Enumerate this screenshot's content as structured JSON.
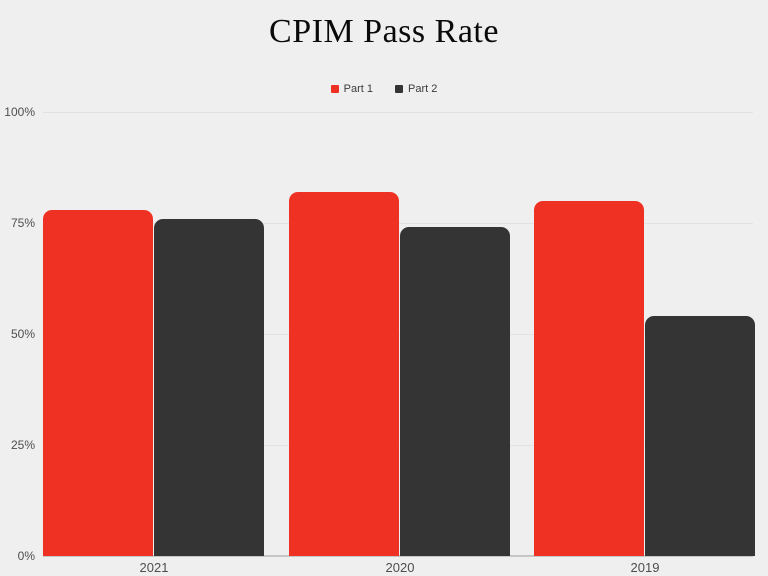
{
  "title": "CPIM Pass Rate",
  "chart_data": {
    "type": "bar",
    "title": "CPIM Pass Rate",
    "categories": [
      "2021",
      "2020",
      "2019"
    ],
    "series": [
      {
        "name": "Part 1",
        "color": "#ee3123",
        "values": [
          78,
          82,
          80
        ]
      },
      {
        "name": "Part 2",
        "color": "#343434",
        "values": [
          76,
          74,
          54
        ]
      }
    ],
    "ylim": [
      0,
      100
    ],
    "yticks": [
      0,
      25,
      50,
      75,
      100
    ],
    "ytick_labels": [
      "0%",
      "25%",
      "50%",
      "75%",
      "100%"
    ],
    "xlabel": "",
    "ylabel": "",
    "grid": true,
    "legend_position": "top-center",
    "colors": {
      "background": "#efefef",
      "gridline": "#e2e2e2",
      "baseline": "#c6c6c6",
      "axis_text": "#4e4e4e",
      "title_text": "#0a0a0a",
      "legend_text": "#3c3c3c"
    }
  }
}
